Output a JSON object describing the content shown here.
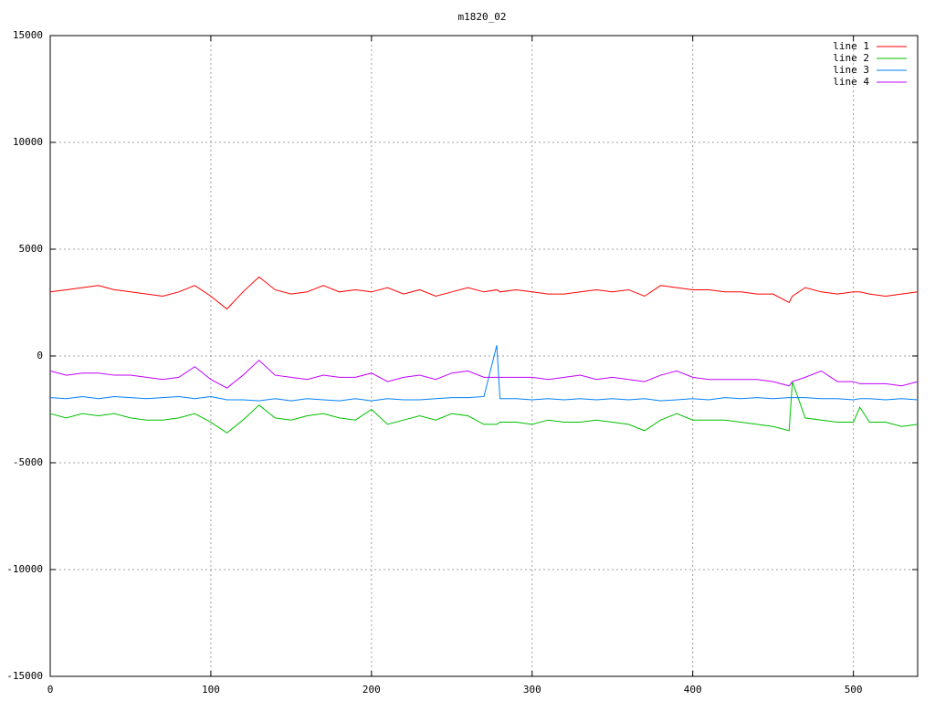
{
  "chart_data": {
    "type": "line",
    "title": "m1820_02",
    "x": [
      0,
      10,
      20,
      30,
      40,
      50,
      60,
      70,
      80,
      90,
      100,
      110,
      120,
      130,
      140,
      150,
      160,
      170,
      180,
      190,
      200,
      210,
      220,
      230,
      240,
      250,
      260,
      270,
      278,
      280,
      290,
      300,
      310,
      320,
      330,
      340,
      350,
      360,
      370,
      380,
      390,
      400,
      410,
      420,
      430,
      440,
      450,
      460,
      462,
      470,
      480,
      490,
      500,
      504,
      510,
      520,
      530,
      540
    ],
    "series": [
      {
        "name": "line 1",
        "color": "#ff0000",
        "values": [
          3000,
          3100,
          3200,
          3300,
          3100,
          3000,
          2900,
          2800,
          3000,
          3300,
          2800,
          2200,
          3000,
          3700,
          3100,
          2900,
          3000,
          3300,
          3000,
          3100,
          3000,
          3200,
          2900,
          3100,
          2800,
          3000,
          3200,
          3000,
          3100,
          3000,
          3100,
          3000,
          2900,
          2900,
          3000,
          3100,
          3000,
          3100,
          2800,
          3300,
          3200,
          3100,
          3100,
          3000,
          3000,
          2900,
          2900,
          2500,
          2800,
          3200,
          3000,
          2900,
          3000,
          3000,
          2900,
          2800,
          2900,
          3000
        ]
      },
      {
        "name": "line 2",
        "color": "#00c000",
        "values": [
          -2700,
          -2900,
          -2700,
          -2800,
          -2700,
          -2900,
          -3000,
          -3000,
          -2900,
          -2700,
          -3100,
          -3600,
          -3000,
          -2300,
          -2900,
          -3000,
          -2800,
          -2700,
          -2900,
          -3000,
          -2500,
          -3200,
          -3000,
          -2800,
          -3000,
          -2700,
          -2800,
          -3200,
          -3200,
          -3100,
          -3100,
          -3200,
          -3000,
          -3100,
          -3100,
          -3000,
          -3100,
          -3200,
          -3500,
          -3000,
          -2700,
          -3000,
          -3000,
          -3000,
          -3100,
          -3200,
          -3300,
          -3500,
          -1200,
          -2900,
          -3000,
          -3100,
          -3100,
          -2400,
          -3100,
          -3100,
          -3300,
          -3200
        ]
      },
      {
        "name": "line 3",
        "color": "#0080ff",
        "values": [
          -1950,
          -2000,
          -1900,
          -2000,
          -1900,
          -1950,
          -2000,
          -1950,
          -1900,
          -2000,
          -1900,
          -2050,
          -2050,
          -2100,
          -2000,
          -2100,
          -2000,
          -2050,
          -2100,
          -2000,
          -2100,
          -2000,
          -2050,
          -2050,
          -2000,
          -1950,
          -1950,
          -1900,
          500,
          -2000,
          -2000,
          -2050,
          -2000,
          -2050,
          -2000,
          -2050,
          -2000,
          -2050,
          -2000,
          -2100,
          -2050,
          -2000,
          -2050,
          -1950,
          -2000,
          -1950,
          -2000,
          -1950,
          -1950,
          -1950,
          -2000,
          -2000,
          -2050,
          -2000,
          -2000,
          -2050,
          -2000,
          -2050
        ]
      },
      {
        "name": "line 4",
        "color": "#c000ff",
        "values": [
          -700,
          -900,
          -800,
          -800,
          -900,
          -900,
          -1000,
          -1100,
          -1000,
          -500,
          -1100,
          -1500,
          -900,
          -200,
          -900,
          -1000,
          -1100,
          -900,
          -1000,
          -1000,
          -800,
          -1200,
          -1000,
          -900,
          -1100,
          -800,
          -700,
          -1000,
          -1000,
          -1000,
          -1000,
          -1000,
          -1100,
          -1000,
          -900,
          -1100,
          -1000,
          -1100,
          -1200,
          -900,
          -700,
          -1000,
          -1100,
          -1100,
          -1100,
          -1100,
          -1200,
          -1400,
          -1200,
          -1000,
          -700,
          -1200,
          -1200,
          -1300,
          -1300,
          -1300,
          -1400,
          -1200
        ]
      }
    ],
    "xlim": [
      0,
      540
    ],
    "xticks": [
      0,
      100,
      200,
      300,
      400,
      500
    ],
    "ylim": [
      -15000,
      15000
    ],
    "yticks": [
      -15000,
      -10000,
      -5000,
      0,
      5000,
      10000,
      15000
    ],
    "grid": true,
    "legend": "top-right"
  }
}
